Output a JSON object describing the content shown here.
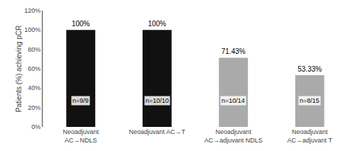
{
  "chart_data": {
    "type": "bar",
    "categories": [
      "Neoadjuvant\nAC→NDLS",
      "Neoadjuvant AC→T",
      "Neoadjuvant\nAC→adjuvant NDLS",
      "Neoadjuvant\nAC→adjuvant T"
    ],
    "values": [
      100,
      100,
      71.43,
      53.33
    ],
    "value_labels": [
      "100%",
      "100%",
      "71.43%",
      "53.33%"
    ],
    "data_labels": true,
    "colors": [
      "#111111",
      "#111111",
      "#aaaaaa",
      "#aaaaaa"
    ],
    "ylabel": "Patients (%) achieving pCR",
    "ylim": [
      0,
      120
    ],
    "yticks": [
      {
        "value": 0,
        "label": "0%"
      },
      {
        "value": 20,
        "label": "20%"
      },
      {
        "value": 40,
        "label": "40%"
      },
      {
        "value": 60,
        "label": "60%"
      },
      {
        "value": 80,
        "label": "80%"
      },
      {
        "value": 100,
        "label": "100%"
      },
      {
        "value": 120,
        "label": "120%"
      }
    ],
    "annotations": [
      {
        "x": "Neoadjuvant\nAC→NDLS",
        "text": "n=9/9"
      },
      {
        "x": "Neoadjuvant AC→T",
        "text": "n=10/10"
      },
      {
        "x": "Neoadjuvant\nAC→adjuvant NDLS",
        "text": "n=10/14"
      },
      {
        "x": "Neoadjuvant\nAC→adjuvant T",
        "text": "n=8/15"
      }
    ],
    "grid": false
  }
}
